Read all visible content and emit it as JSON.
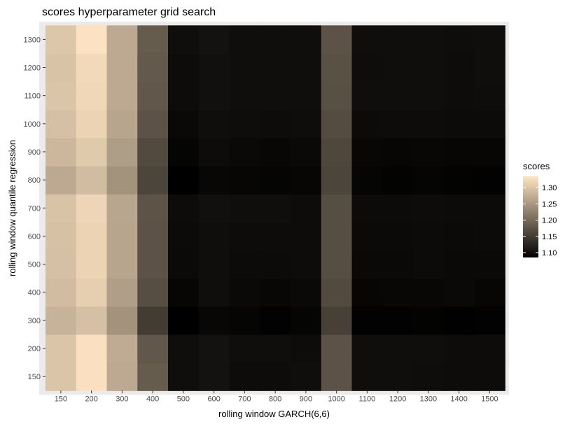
{
  "chart_data": {
    "type": "heatmap",
    "title": "scores hyperparameter grid search",
    "xlabel": "rolling window GARCH(6,6)",
    "ylabel": "rolling window quantile regression",
    "x_categories": [
      "150",
      "200",
      "300",
      "400",
      "500",
      "600",
      "700",
      "800",
      "900",
      "1000",
      "1100",
      "1200",
      "1300",
      "1400",
      "1500"
    ],
    "y_categories": [
      "150",
      "200",
      "300",
      "400",
      "500",
      "600",
      "700",
      "800",
      "900",
      "1000",
      "1100",
      "1200",
      "1300"
    ],
    "legend": {
      "title": "scores",
      "ticks": [
        1.3,
        1.25,
        1.2,
        1.15,
        1.1
      ],
      "tick_labels": [
        "1.30",
        "1.25",
        "1.20",
        "1.15",
        "1.10"
      ],
      "range": [
        1.085,
        1.335
      ],
      "colors": [
        "#000000",
        "#ffe5c4"
      ],
      "placement": "right"
    },
    "z": [
      [
        1.3,
        1.33,
        1.27,
        1.185,
        1.1,
        1.105,
        1.098,
        1.098,
        1.1,
        1.175,
        1.1,
        1.1,
        1.099,
        1.098,
        1.098
      ],
      [
        1.3,
        1.33,
        1.272,
        1.18,
        1.1,
        1.105,
        1.1,
        1.1,
        1.098,
        1.175,
        1.1,
        1.1,
        1.1,
        1.098,
        1.098
      ],
      [
        1.28,
        1.295,
        1.245,
        1.15,
        1.085,
        1.093,
        1.09,
        1.087,
        1.09,
        1.155,
        1.087,
        1.087,
        1.088,
        1.086,
        1.087
      ],
      [
        1.29,
        1.31,
        1.258,
        1.17,
        1.092,
        1.1,
        1.095,
        1.093,
        1.095,
        1.165,
        1.092,
        1.093,
        1.093,
        1.095,
        1.092
      ],
      [
        1.295,
        1.315,
        1.265,
        1.175,
        1.096,
        1.1,
        1.097,
        1.097,
        1.098,
        1.17,
        1.095,
        1.095,
        1.097,
        1.095,
        1.095
      ],
      [
        1.296,
        1.315,
        1.265,
        1.175,
        1.097,
        1.1,
        1.098,
        1.098,
        1.098,
        1.17,
        1.096,
        1.096,
        1.097,
        1.096,
        1.097
      ],
      [
        1.298,
        1.318,
        1.266,
        1.176,
        1.098,
        1.103,
        1.1,
        1.1,
        1.098,
        1.17,
        1.097,
        1.097,
        1.098,
        1.097,
        1.097
      ],
      [
        1.27,
        1.29,
        1.245,
        1.16,
        1.085,
        1.093,
        1.092,
        1.09,
        1.092,
        1.16,
        1.09,
        1.088,
        1.09,
        1.088,
        1.087
      ],
      [
        1.285,
        1.305,
        1.257,
        1.165,
        1.09,
        1.098,
        1.095,
        1.093,
        1.095,
        1.162,
        1.093,
        1.092,
        1.093,
        1.092,
        1.092
      ],
      [
        1.295,
        1.315,
        1.265,
        1.175,
        1.095,
        1.1,
        1.099,
        1.098,
        1.099,
        1.168,
        1.097,
        1.098,
        1.098,
        1.097,
        1.097
      ],
      [
        1.3,
        1.32,
        1.27,
        1.18,
        1.098,
        1.103,
        1.1,
        1.1,
        1.1,
        1.172,
        1.1,
        1.1,
        1.1,
        1.098,
        1.099
      ],
      [
        1.298,
        1.322,
        1.27,
        1.182,
        1.098,
        1.103,
        1.1,
        1.1,
        1.1,
        1.173,
        1.099,
        1.1,
        1.1,
        1.098,
        1.1
      ],
      [
        1.302,
        1.332,
        1.27,
        1.185,
        1.1,
        1.105,
        1.1,
        1.1,
        1.1,
        1.175,
        1.1,
        1.1,
        1.1,
        1.099,
        1.1
      ]
    ]
  }
}
